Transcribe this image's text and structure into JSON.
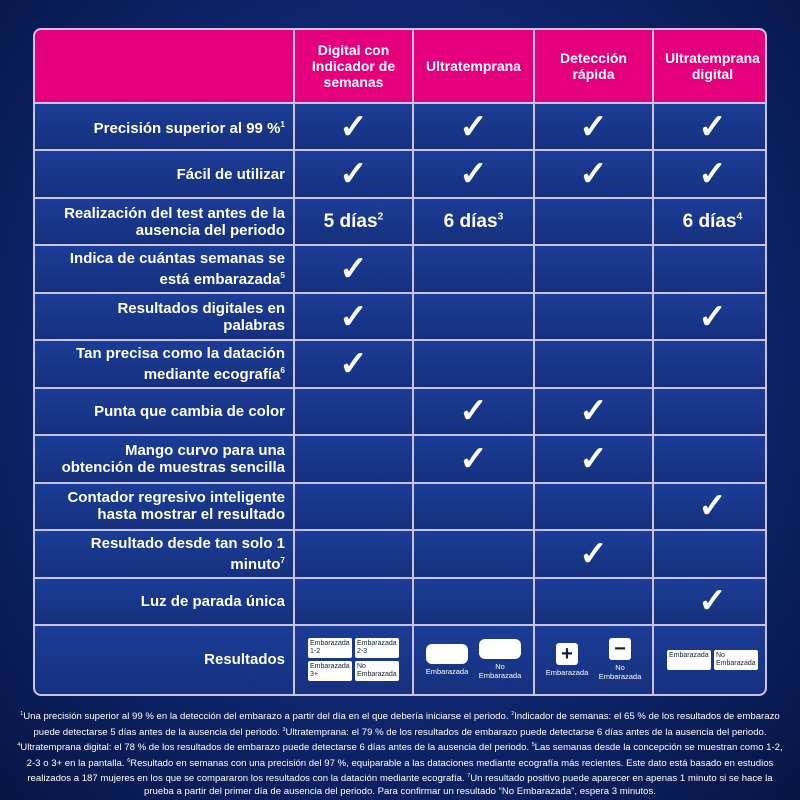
{
  "table": {
    "columns": [
      "Digital con Indicador de semanas",
      "Ultratemprana",
      "Detección rápida",
      "Ultratemprana digital"
    ],
    "rows": [
      {
        "label": {
          "text": "Precisión superior al 99 %",
          "sup": "1"
        },
        "cells": [
          "✓",
          "✓",
          "✓",
          "✓"
        ]
      },
      {
        "label": {
          "text": "Fácil de utilizar"
        },
        "cells": [
          "✓",
          "✓",
          "✓",
          "✓"
        ]
      },
      {
        "label": {
          "text": "Realización del test antes de la ausencia del periodo"
        },
        "cells": [
          {
            "text": "5 días",
            "sup": "2"
          },
          {
            "text": "6 días",
            "sup": "3"
          },
          null,
          {
            "text": "6 días",
            "sup": "4"
          }
        ]
      },
      {
        "label": {
          "text": "Indica de cuántas semanas se está embarazada",
          "sup": "5"
        },
        "cells": [
          "✓",
          null,
          null,
          null
        ]
      },
      {
        "label": {
          "text": "Resultados digitales en palabras"
        },
        "cells": [
          "✓",
          null,
          null,
          "✓"
        ]
      },
      {
        "label": {
          "text": "Tan precisa como la datación mediante ecografía",
          "sup": "6"
        },
        "cells": [
          "✓",
          null,
          null,
          null
        ]
      },
      {
        "label": {
          "text": "Punta que cambia de color"
        },
        "cells": [
          null,
          "✓",
          "✓",
          null
        ]
      },
      {
        "label": {
          "text": "Mango curvo para una obtención de muestras sencilla"
        },
        "cells": [
          null,
          "✓",
          "✓",
          null
        ]
      },
      {
        "label": {
          "text": "Contador regresivo inteligente hasta mostrar el resultado"
        },
        "cells": [
          null,
          null,
          null,
          "✓"
        ]
      },
      {
        "label": {
          "text": "Resultado desde tan solo 1 minuto",
          "sup": "7"
        },
        "cells": [
          null,
          null,
          "✓",
          null
        ]
      },
      {
        "label": {
          "text": "Luz de parada única"
        },
        "cells": [
          null,
          null,
          null,
          "✓"
        ]
      }
    ],
    "results": {
      "label": "Resultados",
      "items": [
        [
          "Embarazada 1-2",
          "Embarazada 2-3",
          "Embarazada 3+",
          "No Embarazada"
        ],
        [
          "Embarazada",
          "No Embarazada"
        ],
        [
          "Embarazada",
          "No Embarazada"
        ],
        [
          "Embarazada",
          "No Embarazada"
        ]
      ]
    }
  },
  "footnotes": [
    {
      "sup": "1",
      "text": "Una precisión superior al 99 % en la detección del embarazo a partir del día en el que debería iniciarse el periodo. "
    },
    {
      "sup": "2",
      "text": "Indicador de semanas: el 65 % de los resultados de embarazo puede detectarse 5 días antes de la ausencia del periodo. "
    },
    {
      "sup": "3",
      "text": "Ultratemprana: el 79 % de los resultados de embarazo puede detectarse 6 días antes de la ausencia del periodo. "
    },
    {
      "sup": "4",
      "text": "Ultratemprana digital: el 78 % de los resultados de embarazo puede detectarse 6 días antes de la ausencia del periodo. "
    },
    {
      "sup": "5",
      "text": "Las semanas desde la concepción se muestran como 1-2, 2-3 o 3+ en la pantalla. "
    },
    {
      "sup": "6",
      "text": "Resultado en semanas con una precisión del 97 %, equiparable a las dataciones mediante ecografía más recientes. Este dato está basado en estudios realizados a 187 mujeres en los que se compararon los resultados con la datación mediante ecografía. "
    },
    {
      "sup": "7",
      "text": "Un resultado positivo puede aparecer en apenas 1 minuto si se hace la prueba a partir del primer día de ausencia del periodo. Para confirmar un resultado “No Embarazada”, espera 3 minutos."
    }
  ]
}
